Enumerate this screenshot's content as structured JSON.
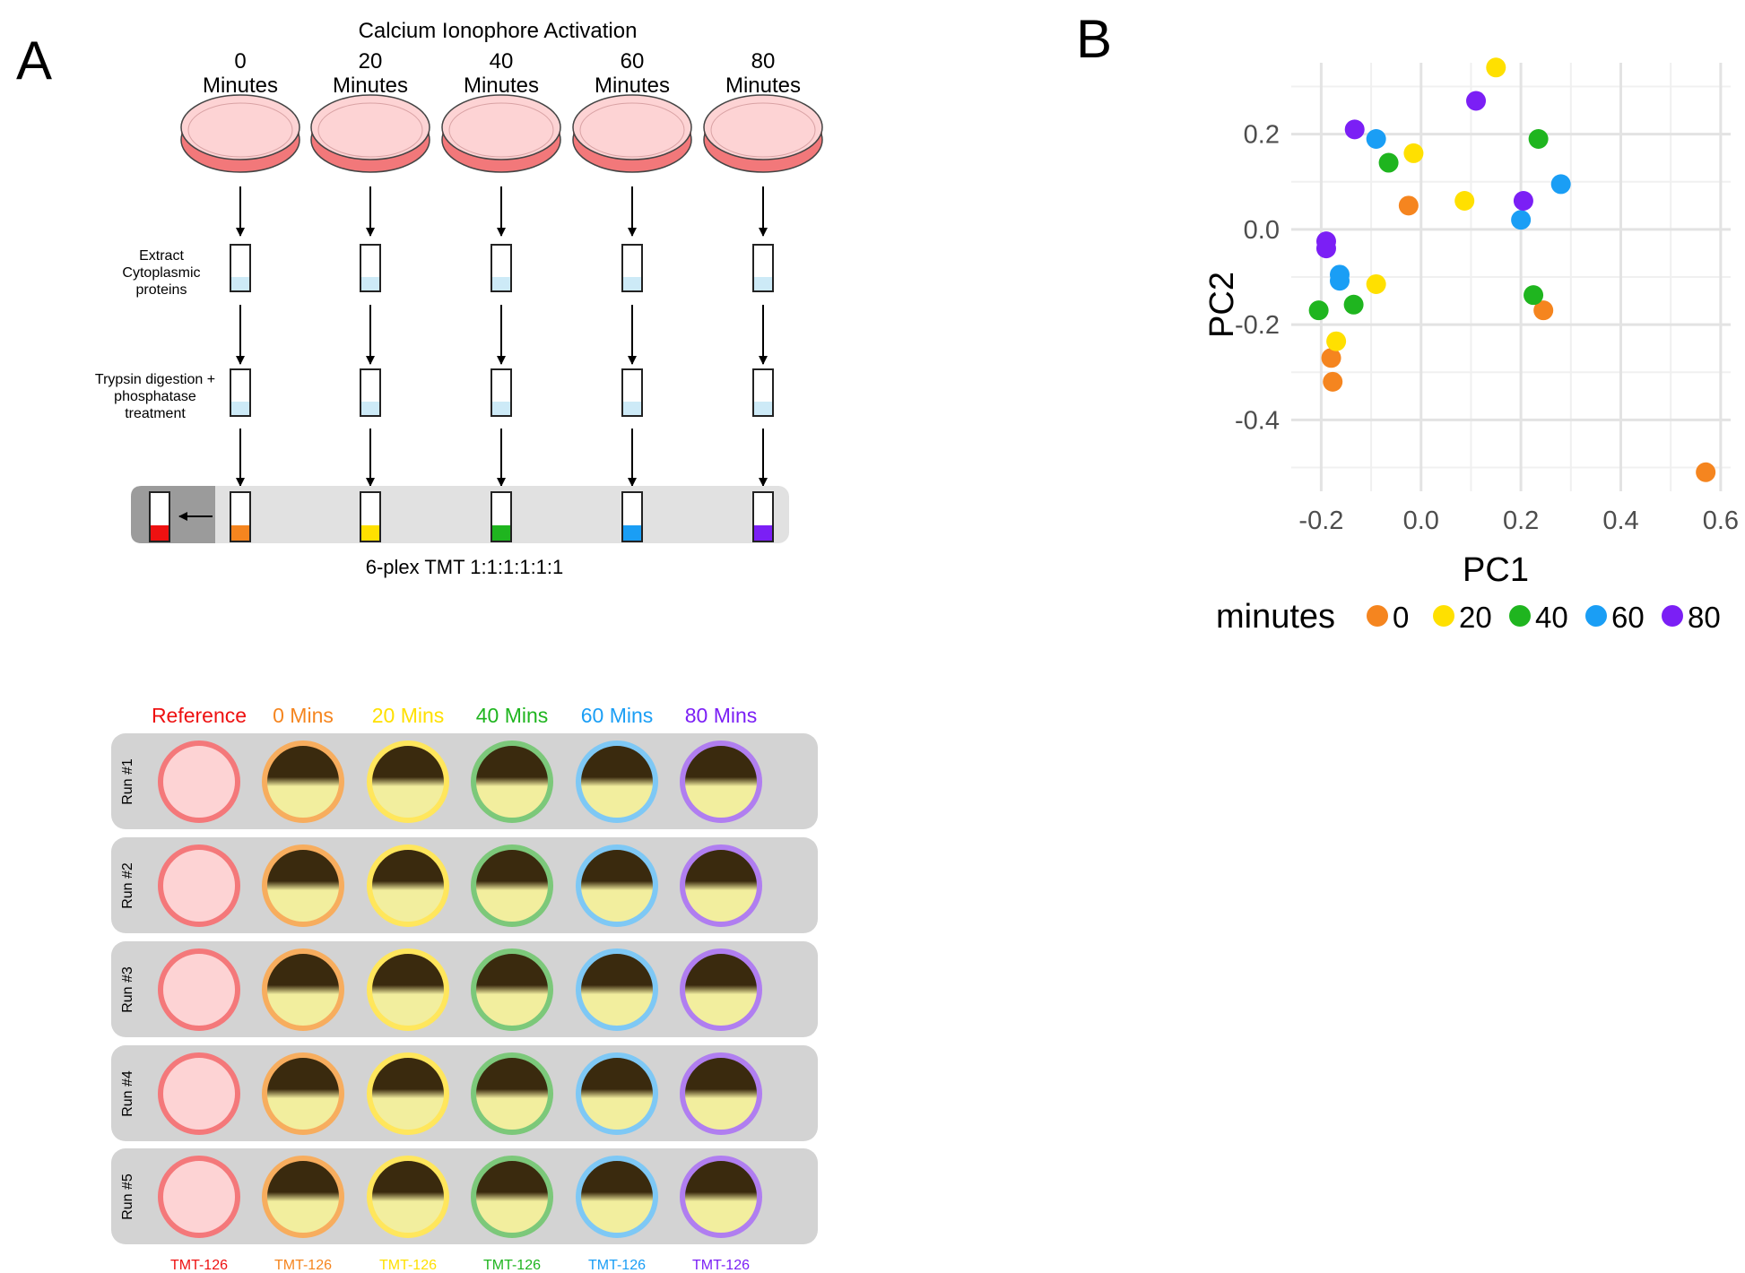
{
  "panel_a": {
    "letter": "A",
    "title": "Calcium Ionophore Activation",
    "timepoints": [
      {
        "num": "0",
        "unit": "Minutes"
      },
      {
        "num": "20",
        "unit": "Minutes"
      },
      {
        "num": "40",
        "unit": "Minutes"
      },
      {
        "num": "60",
        "unit": "Minutes"
      },
      {
        "num": "80",
        "unit": "Minutes"
      }
    ],
    "step1": [
      "Extract",
      "Cytoplasmic",
      "proteins"
    ],
    "step2": [
      "Trypsin digestion +",
      "phosphatase",
      "treatment"
    ],
    "tmt_label": "6-plex TMT 1:1:1:1:1:1",
    "tube_colors": [
      "#f5851f",
      "#ffe000",
      "#1fb51f",
      "#1a9ef5",
      "#7b1ff5"
    ],
    "reference_color": "#ee1111",
    "grid": {
      "headers": [
        {
          "label": "Reference",
          "color": "#ee1111"
        },
        {
          "label": "0 Mins",
          "color": "#f5851f"
        },
        {
          "label": "20 Mins",
          "color": "#ffe000"
        },
        {
          "label": "40 Mins",
          "color": "#1fb51f"
        },
        {
          "label": "60 Mins",
          "color": "#1a9ef5"
        },
        {
          "label": "80 Mins",
          "color": "#7b1ff5"
        }
      ],
      "ring_colors": [
        "#f4787a",
        "#f7ad5e",
        "#ffe65c",
        "#7cc87a",
        "#7ec8f5",
        "#b07ef0"
      ],
      "runs": [
        "Run #1",
        "Run #2",
        "Run #3",
        "Run #4",
        "Run #5"
      ],
      "tmt_labels": [
        "TMT-126",
        "TMT-126",
        "TMT-126",
        "TMT-126",
        "TMT-126",
        "TMT-126"
      ]
    }
  },
  "panel_b": {
    "letter": "B",
    "legend_title": "minutes"
  },
  "chart_data": {
    "type": "scatter",
    "xlabel": "PC1",
    "ylabel": "PC2",
    "xlim": [
      -0.26,
      0.62
    ],
    "ylim": [
      -0.55,
      0.35
    ],
    "xticks": [
      -0.2,
      0.0,
      0.2,
      0.4,
      0.6
    ],
    "xtick_labels": [
      "-0.2",
      "0.0",
      "0.2",
      "0.4",
      "0.6"
    ],
    "yticks": [
      -0.4,
      -0.2,
      0.0,
      0.2
    ],
    "ytick_labels": [
      "-0.4",
      "-0.2",
      "0.0",
      "0.2"
    ],
    "grid": true,
    "legend_title": "minutes",
    "legend_position": "bottom",
    "series": [
      {
        "name": "0",
        "color": "#f5851f",
        "points": [
          [
            -0.025,
            0.05
          ],
          [
            -0.18,
            -0.27
          ],
          [
            -0.177,
            -0.32
          ],
          [
            0.245,
            -0.17
          ],
          [
            0.57,
            -0.51
          ]
        ]
      },
      {
        "name": "20",
        "color": "#ffe000",
        "points": [
          [
            0.15,
            0.34
          ],
          [
            -0.015,
            0.16
          ],
          [
            0.087,
            0.06
          ],
          [
            -0.09,
            -0.115
          ],
          [
            -0.17,
            -0.235
          ]
        ]
      },
      {
        "name": "40",
        "color": "#1fb51f",
        "points": [
          [
            0.235,
            0.19
          ],
          [
            -0.065,
            0.14
          ],
          [
            -0.205,
            -0.17
          ],
          [
            -0.135,
            -0.158
          ],
          [
            0.225,
            -0.138
          ]
        ]
      },
      {
        "name": "60",
        "color": "#1a9ef5",
        "points": [
          [
            -0.09,
            0.19
          ],
          [
            0.28,
            0.095
          ],
          [
            0.2,
            0.02
          ],
          [
            -0.163,
            -0.095
          ],
          [
            -0.163,
            -0.108
          ]
        ]
      },
      {
        "name": "80",
        "color": "#7b1ff5",
        "points": [
          [
            0.11,
            0.27
          ],
          [
            -0.133,
            0.21
          ],
          [
            0.205,
            0.06
          ],
          [
            -0.19,
            -0.025
          ],
          [
            -0.19,
            -0.04
          ]
        ]
      }
    ]
  }
}
